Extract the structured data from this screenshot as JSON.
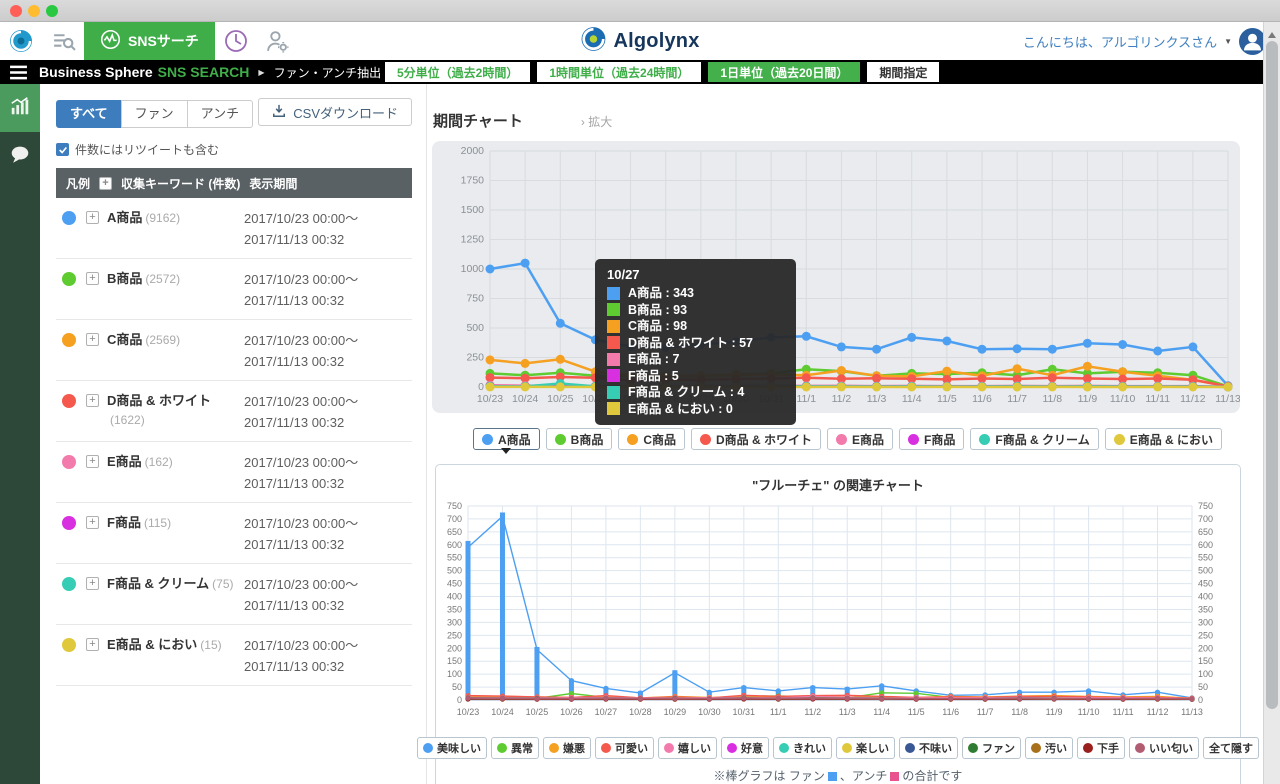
{
  "icons": {
    "plus": "+",
    "expand_chevron": "›",
    "caret_down": "▼"
  },
  "topnav": {
    "sns_search_label": "SNSサーチ",
    "brand": "Algolynx",
    "greeting": "こんにちは、アルゴリンクスさん"
  },
  "header": {
    "app_name": "Business Sphere",
    "app_sub": "SNS SEARCH",
    "breadcrumb": "ファン・アンチ抽出",
    "time_buttons": [
      {
        "label": "5分単位（過去2時間）",
        "active": false,
        "plain": false
      },
      {
        "label": "1時間単位（過去24時間）",
        "active": false,
        "plain": false
      },
      {
        "label": "1日単位（過去20日間）",
        "active": true,
        "plain": false
      },
      {
        "label": "期間指定",
        "active": false,
        "plain": true
      }
    ]
  },
  "sidebar": {
    "items": [
      {
        "icon": "bar-chart-icon",
        "active": true
      },
      {
        "icon": "chat-bubble-icon",
        "active": false
      }
    ]
  },
  "panel": {
    "tabs": [
      {
        "label": "すべて",
        "active": true
      },
      {
        "label": "ファン",
        "active": false
      },
      {
        "label": "アンチ",
        "active": false
      }
    ],
    "csv_button": "CSVダウンロード",
    "checkbox_label": "件数にはリツイートも含む",
    "checkbox_checked": true,
    "table_header": {
      "col1": "凡例",
      "col2": "収集キーワード (件数)",
      "col3": "表示期間"
    },
    "rows": [
      {
        "color": "#4d9ff2",
        "name": "A商品",
        "count": "(9162)",
        "from": "2017/10/23 00:00～",
        "to": "2017/11/13 00:32"
      },
      {
        "color": "#5ecb31",
        "name": "B商品",
        "count": "(2572)",
        "from": "2017/10/23 00:00～",
        "to": "2017/11/13 00:32"
      },
      {
        "color": "#f5a021",
        "name": "C商品",
        "count": "(2569)",
        "from": "2017/10/23 00:00～",
        "to": "2017/11/13 00:32"
      },
      {
        "color": "#f5594e",
        "name": "D商品 & ホワイト",
        "count": "(1622)",
        "from": "2017/10/23 00:00～",
        "to": "2017/11/13 00:32"
      },
      {
        "color": "#f27bab",
        "name": "E商品",
        "count": "(162)",
        "from": "2017/10/23 00:00～",
        "to": "2017/11/13 00:32"
      },
      {
        "color": "#d82fe0",
        "name": "F商品",
        "count": "(115)",
        "from": "2017/10/23 00:00～",
        "to": "2017/11/13 00:32"
      },
      {
        "color": "#36cdb4",
        "name": "F商品 & クリーム",
        "count": "(75)",
        "from": "2017/10/23 00:00～",
        "to": "2017/11/13 00:32"
      },
      {
        "color": "#e0c83c",
        "name": "E商品 & におい",
        "count": "(15)",
        "from": "2017/10/23 00:00～",
        "to": "2017/11/13 00:32"
      }
    ]
  },
  "chart1": {
    "title": "期間チャート",
    "expand_label": "拡大",
    "legend_active_index": 0,
    "tooltip": {
      "date": "10/27",
      "items": [
        {
          "color": "#4d9ff2",
          "label": "A商品",
          "value": 343
        },
        {
          "color": "#5ecb31",
          "label": "B商品",
          "value": 93
        },
        {
          "color": "#f5a021",
          "label": "C商品",
          "value": 98
        },
        {
          "color": "#f5594e",
          "label": "D商品 & ホワイト",
          "value": 57
        },
        {
          "color": "#f27bab",
          "label": "E商品",
          "value": 7
        },
        {
          "color": "#d82fe0",
          "label": "F商品",
          "value": 5
        },
        {
          "color": "#36cdb4",
          "label": "F商品 & クリーム",
          "value": 4
        },
        {
          "color": "#e0c83c",
          "label": "E商品 & におい",
          "value": 0
        }
      ]
    }
  },
  "chart2": {
    "hide_all": "全て隠す",
    "note_prefix": "※棒グラフは ファン",
    "note_mid": "、アンチ",
    "note_suffix": "の合計です",
    "fan_color": "#4d9ff2",
    "anti_color": "#e8538f"
  },
  "chart_data": [
    {
      "type": "line",
      "title": "期間チャート",
      "ylim": [
        0,
        2000
      ],
      "ystep": 250,
      "categories": [
        "10/23",
        "10/24",
        "10/25",
        "10/26",
        "10/27",
        "10/28",
        "10/29",
        "10/30",
        "10/31",
        "11/1",
        "11/2",
        "11/3",
        "11/4",
        "11/5",
        "11/6",
        "11/7",
        "11/8",
        "11/9",
        "11/10",
        "11/11",
        "11/12",
        "11/13"
      ],
      "series": [
        {
          "name": "A商品",
          "color": "#4d9ff2",
          "values": [
            1000,
            1050,
            540,
            400,
            343,
            335,
            360,
            385,
            420,
            430,
            340,
            320,
            420,
            390,
            320,
            325,
            320,
            370,
            360,
            305,
            340,
            10
          ]
        },
        {
          "name": "B商品",
          "color": "#5ecb31",
          "values": [
            115,
            100,
            120,
            95,
            93,
            88,
            95,
            105,
            115,
            150,
            135,
            95,
            115,
            110,
            120,
            100,
            150,
            115,
            130,
            120,
            100,
            5
          ]
        },
        {
          "name": "C商品",
          "color": "#f5a021",
          "values": [
            230,
            200,
            235,
            130,
            98,
            92,
            95,
            100,
            108,
            100,
            140,
            95,
            90,
            135,
            95,
            155,
            100,
            175,
            130,
            95,
            60,
            5
          ]
        },
        {
          "name": "D商品 & ホワイト",
          "color": "#f5594e",
          "values": [
            80,
            75,
            85,
            78,
            57,
            60,
            62,
            68,
            72,
            78,
            70,
            74,
            70,
            64,
            72,
            68,
            78,
            72,
            68,
            72,
            62,
            5
          ]
        },
        {
          "name": "E商品",
          "color": "#f27bab",
          "values": [
            15,
            12,
            10,
            8,
            7,
            8,
            8,
            9,
            10,
            9,
            10,
            8,
            9,
            8,
            8,
            9,
            8,
            9,
            8,
            8,
            8,
            2
          ]
        },
        {
          "name": "F商品",
          "color": "#d82fe0",
          "values": [
            8,
            6,
            5,
            5,
            5,
            6,
            5,
            6,
            6,
            6,
            6,
            5,
            6,
            5,
            5,
            6,
            5,
            6,
            5,
            5,
            5,
            1
          ]
        },
        {
          "name": "F商品 & クリーム",
          "color": "#36cdb4",
          "values": [
            6,
            5,
            30,
            5,
            4,
            4,
            4,
            5,
            5,
            5,
            5,
            4,
            5,
            4,
            4,
            5,
            4,
            5,
            4,
            4,
            4,
            1
          ]
        },
        {
          "name": "E商品 & におい",
          "color": "#e0c83c",
          "values": [
            1,
            1,
            1,
            0,
            0,
            0,
            1,
            0,
            1,
            0,
            1,
            0,
            0,
            1,
            0,
            0,
            1,
            0,
            0,
            1,
            0,
            0
          ]
        }
      ]
    },
    {
      "type": "bar+line",
      "title": "\"フルーチェ\" の関連チャート",
      "ylim": [
        0,
        750
      ],
      "ystep": 50,
      "categories": [
        "10/23",
        "10/24",
        "10/25",
        "10/26",
        "10/27",
        "10/28",
        "10/29",
        "10/30",
        "10/31",
        "11/1",
        "11/2",
        "11/3",
        "11/4",
        "11/5",
        "11/6",
        "11/7",
        "11/8",
        "11/9",
        "11/10",
        "11/11",
        "11/12",
        "11/13"
      ],
      "bar_series": {
        "name": "ファン+アンチ合計",
        "color": "#4d9ff2",
        "values": [
          615,
          725,
          205,
          80,
          50,
          35,
          115,
          35,
          55,
          40,
          55,
          50,
          60,
          40,
          22,
          25,
          35,
          35,
          40,
          25,
          35,
          10
        ]
      },
      "series": [
        {
          "name": "美味しい",
          "color": "#4d9ff2",
          "values": [
            590,
            710,
            195,
            75,
            45,
            27,
            105,
            30,
            48,
            35,
            48,
            42,
            55,
            35,
            18,
            20,
            30,
            30,
            35,
            20,
            30,
            8
          ]
        },
        {
          "name": "異常",
          "color": "#5ecb31",
          "values": [
            12,
            8,
            6,
            25,
            10,
            5,
            6,
            8,
            14,
            16,
            12,
            8,
            28,
            26,
            10,
            6,
            6,
            8,
            6,
            5,
            5,
            4
          ]
        },
        {
          "name": "嫌悪",
          "color": "#f5a021",
          "values": [
            14,
            14,
            12,
            10,
            14,
            8,
            14,
            10,
            12,
            12,
            14,
            12,
            10,
            10,
            14,
            12,
            15,
            17,
            14,
            12,
            14,
            7
          ]
        },
        {
          "name": "可愛い",
          "color": "#f5594e",
          "values": [
            17,
            15,
            12,
            10,
            17,
            8,
            12,
            8,
            18,
            14,
            17,
            18,
            14,
            10,
            12,
            10,
            14,
            14,
            12,
            10,
            10,
            7
          ]
        },
        {
          "name": "嬉しい",
          "color": "#f27bab",
          "values": [
            10,
            9,
            8,
            8,
            10,
            7,
            8,
            8,
            10,
            8,
            14,
            11,
            8,
            8,
            8,
            8,
            10,
            8,
            8,
            8,
            8,
            5
          ]
        },
        {
          "name": "好意",
          "color": "#d82fe0",
          "values": [
            6,
            6,
            5,
            5,
            6,
            5,
            5,
            5,
            6,
            5,
            6,
            6,
            5,
            5,
            5,
            5,
            6,
            5,
            5,
            5,
            5,
            4
          ]
        },
        {
          "name": "きれい",
          "color": "#36cdb4",
          "values": [
            4,
            4,
            4,
            4,
            4,
            4,
            4,
            4,
            5,
            4,
            5,
            4,
            4,
            4,
            4,
            4,
            4,
            4,
            4,
            4,
            4,
            3
          ]
        },
        {
          "name": "楽しい",
          "color": "#e0c83c",
          "values": [
            5,
            5,
            4,
            4,
            5,
            4,
            4,
            4,
            5,
            5,
            6,
            5,
            5,
            4,
            4,
            4,
            5,
            4,
            4,
            4,
            4,
            3
          ]
        },
        {
          "name": "不味い",
          "color": "#3a5795",
          "values": [
            6,
            5,
            5,
            4,
            5,
            4,
            5,
            4,
            6,
            5,
            6,
            5,
            5,
            4,
            4,
            4,
            5,
            5,
            4,
            4,
            5,
            3
          ]
        },
        {
          "name": "ファン",
          "color": "#2e7d32",
          "values": [
            8,
            7,
            6,
            5,
            7,
            5,
            6,
            5,
            8,
            6,
            8,
            7,
            6,
            5,
            5,
            5,
            7,
            6,
            5,
            5,
            5,
            4
          ]
        },
        {
          "name": "汚い",
          "color": "#a8701a",
          "values": [
            5,
            4,
            4,
            4,
            4,
            4,
            4,
            4,
            5,
            4,
            5,
            4,
            4,
            4,
            4,
            4,
            4,
            4,
            4,
            4,
            4,
            3
          ]
        },
        {
          "name": "下手",
          "color": "#99201c",
          "values": [
            4,
            4,
            3,
            3,
            4,
            3,
            3,
            3,
            4,
            4,
            4,
            4,
            4,
            3,
            3,
            3,
            4,
            4,
            3,
            3,
            4,
            3
          ]
        },
        {
          "name": "いい匂い",
          "color": "#b25c72",
          "values": [
            7,
            6,
            5,
            5,
            6,
            5,
            5,
            5,
            7,
            6,
            7,
            6,
            5,
            5,
            5,
            5,
            6,
            5,
            5,
            5,
            6,
            4
          ]
        }
      ]
    }
  ]
}
